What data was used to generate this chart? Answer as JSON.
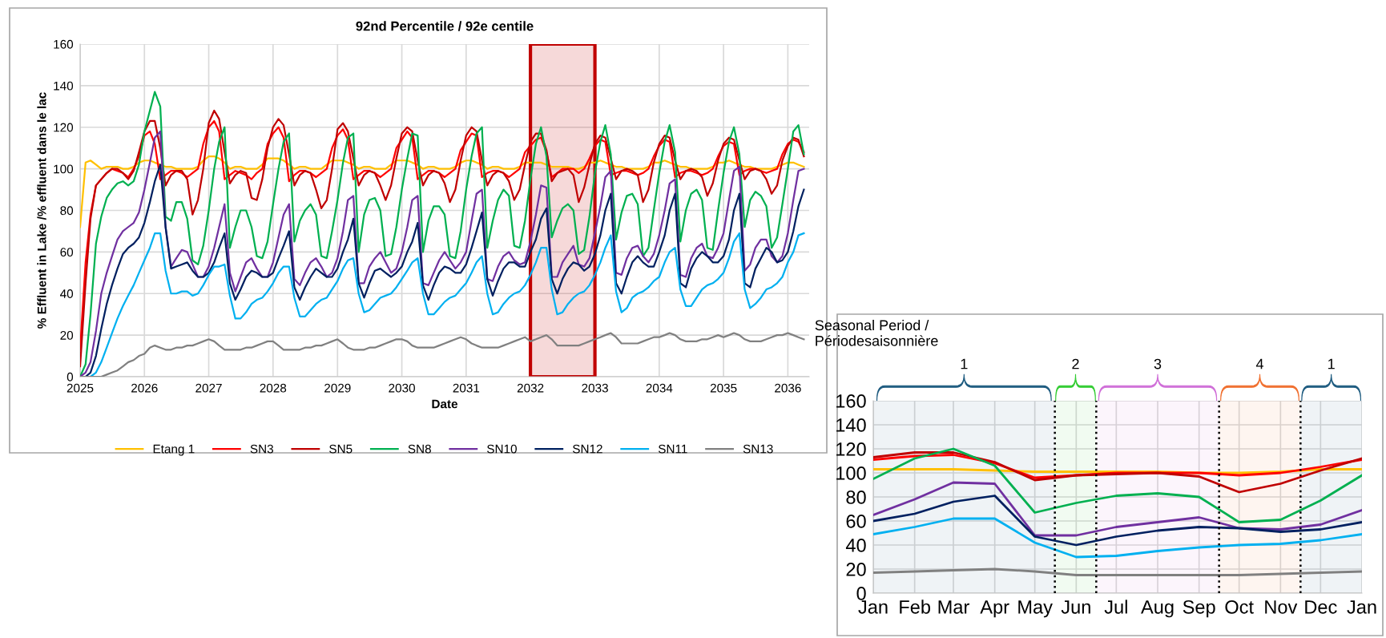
{
  "chart_data": [
    {
      "type": "line",
      "title": "92nd Percentile / 92e centile",
      "xlabel": "Date",
      "ylabel": "% Effluent in Lake /% effluent dans le lac",
      "x": [
        "2025-01",
        "2025-02",
        "2025-03",
        "2025-04",
        "2025-05",
        "2025-06",
        "2025-07",
        "2025-08",
        "2025-09",
        "2025-10",
        "2025-11",
        "2025-12",
        "2026-01",
        "2026-02",
        "2026-03",
        "2026-04",
        "2026-05",
        "2026-06",
        "2026-07",
        "2026-08",
        "2026-09",
        "2026-10",
        "2026-11",
        "2026-12",
        "2027-01",
        "2027-02",
        "2027-03",
        "2027-04",
        "2027-05",
        "2027-06",
        "2027-07",
        "2027-08",
        "2027-09",
        "2027-10",
        "2027-11",
        "2027-12",
        "2028-01",
        "2028-02",
        "2028-03",
        "2028-04",
        "2028-05",
        "2028-06",
        "2028-07",
        "2028-08",
        "2028-09",
        "2028-10",
        "2028-11",
        "2028-12",
        "2029-01",
        "2029-02",
        "2029-03",
        "2029-04",
        "2029-05",
        "2029-06",
        "2029-07",
        "2029-08",
        "2029-09",
        "2029-10",
        "2029-11",
        "2029-12",
        "2030-01",
        "2030-02",
        "2030-03",
        "2030-04",
        "2030-05",
        "2030-06",
        "2030-07",
        "2030-08",
        "2030-09",
        "2030-10",
        "2030-11",
        "2030-12",
        "2031-01",
        "2031-02",
        "2031-03",
        "2031-04",
        "2031-05",
        "2031-06",
        "2031-07",
        "2031-08",
        "2031-09",
        "2031-10",
        "2031-11",
        "2031-12",
        "2032-01",
        "2032-02",
        "2032-03",
        "2032-04",
        "2032-05",
        "2032-06",
        "2032-07",
        "2032-08",
        "2032-09",
        "2032-10",
        "2032-11",
        "2032-12",
        "2033-01",
        "2033-02",
        "2033-03",
        "2033-04",
        "2033-05",
        "2033-06",
        "2033-07",
        "2033-08",
        "2033-09",
        "2033-10",
        "2033-11",
        "2033-12",
        "2034-01",
        "2034-02",
        "2034-03",
        "2034-04",
        "2034-05",
        "2034-06",
        "2034-07",
        "2034-08",
        "2034-09",
        "2034-10",
        "2034-11",
        "2034-12",
        "2035-01",
        "2035-02",
        "2035-03",
        "2035-04",
        "2035-05",
        "2035-06",
        "2035-07",
        "2035-08",
        "2035-09",
        "2035-10",
        "2035-11",
        "2035-12",
        "2036-01",
        "2036-02",
        "2036-03",
        "2036-04"
      ],
      "series": [
        {
          "name": "Etang 1",
          "color": "#ffc000",
          "values": [
            72,
            103,
            104,
            102,
            100,
            101,
            101,
            101,
            100,
            100,
            101,
            103,
            104,
            104,
            103,
            102,
            101,
            101,
            100,
            100,
            100,
            100,
            101,
            104,
            106,
            106,
            105,
            103,
            100,
            101,
            101,
            100,
            100,
            100,
            102,
            105,
            105,
            105,
            104,
            102,
            100,
            101,
            101,
            100,
            100,
            100,
            102,
            104,
            104,
            104,
            103,
            102,
            100,
            101,
            101,
            100,
            100,
            100,
            102,
            104,
            104,
            104,
            103,
            102,
            100,
            101,
            101,
            100,
            100,
            100,
            101,
            103,
            104,
            104,
            103,
            102,
            100,
            101,
            101,
            100,
            100,
            100,
            101,
            103,
            103,
            103,
            103,
            102,
            101,
            101,
            101,
            101,
            100,
            100,
            101,
            103,
            103,
            104,
            103,
            102,
            101,
            101,
            100,
            100,
            100,
            100,
            101,
            103,
            103,
            104,
            103,
            102,
            101,
            101,
            100,
            100,
            100,
            100,
            101,
            103,
            103,
            104,
            103,
            102,
            101,
            101,
            100,
            100,
            100,
            100,
            101,
            102,
            103,
            103,
            102,
            101
          ]
        },
        {
          "name": "SN3",
          "color": "#ff0000",
          "values": [
            13,
            55,
            78,
            92,
            95,
            98,
            100,
            99,
            98,
            96,
            100,
            106,
            116,
            118,
            112,
            95,
            97,
            99,
            99,
            98,
            96,
            98,
            100,
            112,
            120,
            123,
            118,
            95,
            97,
            99,
            98,
            97,
            95,
            98,
            100,
            112,
            117,
            120,
            115,
            94,
            97,
            99,
            99,
            98,
            96,
            98,
            100,
            110,
            116,
            119,
            114,
            95,
            97,
            99,
            99,
            98,
            96,
            98,
            100,
            110,
            114,
            118,
            115,
            95,
            97,
            99,
            99,
            98,
            96,
            98,
            100,
            109,
            113,
            117,
            116,
            96,
            98,
            99,
            99,
            98,
            96,
            98,
            100,
            108,
            111,
            114,
            115,
            108,
            96,
            98,
            100,
            100,
            100,
            98,
            100,
            105,
            111,
            114,
            113,
            97,
            98,
            99,
            99,
            98,
            97,
            98,
            100,
            106,
            111,
            114,
            113,
            96,
            98,
            99,
            99,
            98,
            97,
            98,
            100,
            106,
            111,
            113,
            112,
            97,
            99,
            100,
            100,
            99,
            98,
            99,
            100,
            107,
            112,
            114,
            113,
            108
          ]
        },
        {
          "name": "SN5",
          "color": "#c00000",
          "values": [
            5,
            45,
            76,
            92,
            95,
            98,
            100,
            100,
            98,
            95,
            99,
            108,
            118,
            123,
            123,
            110,
            92,
            97,
            99,
            99,
            95,
            78,
            85,
            100,
            122,
            128,
            124,
            108,
            93,
            97,
            99,
            98,
            86,
            85,
            95,
            110,
            120,
            124,
            121,
            107,
            92,
            97,
            99,
            98,
            90,
            81,
            85,
            100,
            119,
            122,
            118,
            105,
            92,
            97,
            99,
            98,
            92,
            85,
            92,
            105,
            117,
            120,
            118,
            104,
            92,
            97,
            99,
            98,
            93,
            84,
            90,
            104,
            116,
            120,
            118,
            104,
            92,
            97,
            99,
            98,
            94,
            85,
            90,
            102,
            113,
            117,
            117,
            109,
            94,
            98,
            99,
            100,
            97,
            84,
            91,
            102,
            112,
            116,
            115,
            105,
            95,
            99,
            100,
            99,
            97,
            84,
            90,
            103,
            112,
            116,
            115,
            104,
            95,
            99,
            100,
            99,
            96,
            87,
            93,
            104,
            112,
            115,
            114,
            104,
            95,
            99,
            100,
            99,
            95,
            88,
            92,
            104,
            111,
            115,
            114,
            106
          ]
        },
        {
          "name": "SN8",
          "color": "#00b050",
          "values": [
            0,
            6,
            30,
            64,
            77,
            86,
            90,
            93,
            94,
            92,
            94,
            102,
            118,
            128,
            137,
            130,
            77,
            75,
            84,
            84,
            76,
            56,
            54,
            63,
            80,
            100,
            113,
            120,
            62,
            72,
            80,
            80,
            72,
            58,
            57,
            65,
            83,
            100,
            113,
            117,
            65,
            75,
            80,
            83,
            78,
            58,
            57,
            70,
            85,
            103,
            115,
            117,
            60,
            78,
            85,
            86,
            80,
            58,
            59,
            72,
            90,
            105,
            117,
            116,
            60,
            75,
            82,
            82,
            78,
            58,
            57,
            70,
            90,
            106,
            117,
            120,
            62,
            75,
            85,
            90,
            87,
            63,
            62,
            75,
            95,
            112,
            120,
            106,
            67,
            75,
            81,
            83,
            80,
            59,
            61,
            77,
            98,
            113,
            121,
            107,
            66,
            79,
            87,
            88,
            83,
            58,
            62,
            80,
            98,
            113,
            121,
            108,
            65,
            80,
            88,
            90,
            85,
            62,
            61,
            80,
            98,
            113,
            120,
            107,
            72,
            85,
            89,
            87,
            82,
            62,
            67,
            83,
            100,
            118,
            121,
            107
          ]
        },
        {
          "name": "SN10",
          "color": "#7030a0",
          "values": [
            0,
            2,
            7,
            22,
            40,
            50,
            58,
            66,
            70,
            72,
            74,
            79,
            90,
            103,
            115,
            118,
            72,
            53,
            57,
            61,
            60,
            54,
            48,
            48,
            53,
            62,
            72,
            83,
            50,
            41,
            48,
            55,
            57,
            52,
            48,
            48,
            55,
            67,
            78,
            83,
            47,
            44,
            50,
            55,
            57,
            53,
            48,
            50,
            57,
            70,
            85,
            87,
            45,
            45,
            53,
            57,
            60,
            55,
            50,
            52,
            60,
            72,
            85,
            87,
            45,
            44,
            50,
            56,
            60,
            56,
            52,
            55,
            60,
            75,
            88,
            90,
            47,
            46,
            53,
            58,
            60,
            56,
            54,
            55,
            65,
            78,
            92,
            91,
            48,
            48,
            55,
            59,
            63,
            54,
            53,
            57,
            69,
            82,
            96,
            99,
            50,
            49,
            57,
            62,
            63,
            58,
            55,
            59,
            68,
            80,
            93,
            95,
            49,
            48,
            57,
            62,
            64,
            58,
            57,
            62,
            69,
            85,
            99,
            101,
            51,
            54,
            62,
            66,
            66,
            58,
            55,
            58,
            69,
            85,
            99,
            100
          ]
        },
        {
          "name": "SN12",
          "color": "#002060",
          "values": [
            0,
            0,
            2,
            10,
            23,
            35,
            44,
            52,
            59,
            62,
            64,
            67,
            74,
            84,
            94,
            102,
            72,
            52,
            53,
            54,
            55,
            51,
            48,
            48,
            50,
            55,
            62,
            69,
            45,
            37,
            42,
            48,
            51,
            50,
            48,
            48,
            50,
            57,
            63,
            70,
            43,
            37,
            43,
            48,
            52,
            50,
            48,
            48,
            52,
            60,
            66,
            76,
            45,
            38,
            45,
            51,
            52,
            50,
            48,
            50,
            53,
            60,
            65,
            74,
            44,
            37,
            44,
            50,
            53,
            52,
            50,
            50,
            54,
            62,
            70,
            79,
            47,
            39,
            46,
            52,
            55,
            55,
            53,
            53,
            60,
            66,
            76,
            81,
            47,
            40,
            47,
            52,
            55,
            54,
            51,
            53,
            59,
            68,
            80,
            88,
            45,
            40,
            48,
            55,
            58,
            55,
            53,
            53,
            60,
            68,
            80,
            88,
            45,
            43,
            52,
            57,
            60,
            58,
            55,
            55,
            58,
            66,
            80,
            88,
            45,
            43,
            52,
            57,
            62,
            60,
            55,
            56,
            60,
            70,
            82,
            90
          ]
        },
        {
          "name": "SN11",
          "color": "#00b0f0",
          "values": [
            0,
            0,
            0,
            2,
            7,
            14,
            21,
            28,
            34,
            39,
            44,
            50,
            56,
            62,
            69,
            69,
            51,
            40,
            40,
            41,
            41,
            39,
            40,
            44,
            49,
            53,
            53,
            54,
            39,
            28,
            28,
            31,
            35,
            37,
            38,
            41,
            45,
            50,
            53,
            53,
            38,
            29,
            29,
            32,
            35,
            37,
            38,
            42,
            46,
            52,
            56,
            57,
            40,
            31,
            32,
            35,
            38,
            39,
            40,
            43,
            47,
            51,
            55,
            57,
            40,
            30,
            30,
            33,
            36,
            38,
            39,
            42,
            45,
            50,
            55,
            58,
            40,
            30,
            31,
            35,
            38,
            40,
            41,
            44,
            49,
            55,
            62,
            62,
            42,
            30,
            31,
            35,
            38,
            40,
            41,
            44,
            49,
            55,
            62,
            68,
            41,
            31,
            33,
            38,
            40,
            41,
            43,
            46,
            48,
            55,
            60,
            62,
            42,
            34,
            34,
            38,
            42,
            44,
            45,
            47,
            50,
            57,
            65,
            69,
            42,
            33,
            35,
            38,
            42,
            43,
            45,
            48,
            55,
            60,
            68,
            69
          ]
        },
        {
          "name": "SN13",
          "color": "#808080",
          "values": [
            0,
            0,
            0,
            0,
            0,
            1,
            2,
            3,
            5,
            7,
            8,
            10,
            11,
            14,
            15,
            14,
            13,
            13,
            14,
            14,
            15,
            15,
            16,
            17,
            18,
            17,
            15,
            13,
            13,
            13,
            13,
            14,
            14,
            15,
            16,
            17,
            17,
            15,
            13,
            13,
            13,
            13,
            14,
            14,
            15,
            15,
            16,
            17,
            18,
            16,
            14,
            13,
            13,
            13,
            14,
            14,
            15,
            16,
            17,
            18,
            18,
            17,
            15,
            14,
            14,
            14,
            14,
            15,
            16,
            17,
            18,
            19,
            18,
            16,
            15,
            14,
            14,
            14,
            14,
            15,
            16,
            17,
            18,
            19,
            17,
            18,
            19,
            20,
            18,
            15,
            15,
            15,
            15,
            15,
            16,
            17,
            18,
            19,
            20,
            21,
            19,
            16,
            16,
            16,
            16,
            17,
            18,
            19,
            19,
            20,
            21,
            20,
            18,
            17,
            17,
            17,
            18,
            18,
            19,
            20,
            19,
            20,
            21,
            20,
            18,
            17,
            17,
            17,
            18,
            19,
            20,
            20,
            21,
            20,
            19,
            18
          ]
        }
      ],
      "xlim": [
        "2025-01-01",
        "2036-05-01"
      ],
      "xticks": [
        "2025",
        "2026",
        "2027",
        "2028",
        "2029",
        "2030",
        "2031",
        "2032",
        "2033",
        "2034",
        "2035",
        "2036"
      ],
      "ylim": [
        0,
        160
      ],
      "yticks": [
        0,
        20,
        40,
        60,
        80,
        100,
        120,
        140,
        160
      ],
      "grid": true,
      "legend": "bottom",
      "line_style": "solid",
      "bands": [
        {
          "axis": "x",
          "from": "2032-01",
          "to": "2033-01",
          "color": "#c00000"
        }
      ]
    },
    {
      "type": "line",
      "title": "Seasonal Period /\nPériodesaisonnière",
      "x": [
        "2032-01",
        "2032-02",
        "2032-03",
        "2032-04",
        "2032-05",
        "2032-06",
        "2032-07",
        "2032-08",
        "2032-09",
        "2032-10",
        "2032-11",
        "2032-12",
        "2033-01"
      ],
      "series": [
        {
          "color": "#ffc000",
          "values": [
            103,
            103,
            103,
            102,
            101,
            101,
            101,
            101,
            100,
            100,
            101,
            103,
            103
          ]
        },
        {
          "color": "#ff0000",
          "values": [
            111,
            114,
            115,
            108,
            96,
            98,
            100,
            100,
            100,
            98,
            100,
            105,
            111
          ]
        },
        {
          "color": "#c00000",
          "values": [
            113,
            117,
            117,
            109,
            94,
            98,
            99,
            100,
            97,
            84,
            91,
            102,
            112
          ]
        },
        {
          "color": "#00b050",
          "values": [
            95,
            112,
            120,
            106,
            67,
            75,
            81,
            83,
            80,
            59,
            61,
            77,
            98
          ]
        },
        {
          "color": "#7030a0",
          "values": [
            65,
            78,
            92,
            91,
            48,
            48,
            55,
            59,
            63,
            54,
            53,
            57,
            69
          ]
        },
        {
          "color": "#002060",
          "values": [
            60,
            66,
            76,
            81,
            47,
            40,
            47,
            52,
            55,
            54,
            51,
            53,
            59
          ]
        },
        {
          "color": "#00b0f0",
          "values": [
            49,
            55,
            62,
            62,
            42,
            30,
            31,
            35,
            38,
            40,
            41,
            44,
            49
          ]
        },
        {
          "color": "#808080",
          "values": [
            17,
            18,
            19,
            20,
            18,
            15,
            15,
            15,
            15,
            15,
            16,
            17,
            18
          ]
        }
      ],
      "xlim": [
        "2032-01-01",
        "2033-01-01"
      ],
      "xticks": [
        {
          "value": "2032-01",
          "label": "Jan"
        },
        {
          "value": "2032-02",
          "label": "Feb"
        },
        {
          "value": "2032-03",
          "label": "Mar"
        },
        {
          "value": "2032-04",
          "label": "Apr"
        },
        {
          "value": "2032-05",
          "label": "May"
        },
        {
          "value": "2032-06",
          "label": "Jun"
        },
        {
          "value": "2032-07",
          "label": "Jul"
        },
        {
          "value": "2032-08",
          "label": "Aug"
        },
        {
          "value": "2032-09",
          "label": "Sep"
        },
        {
          "value": "2032-10",
          "label": "Oct"
        },
        {
          "value": "2032-11",
          "label": "Nov"
        },
        {
          "value": "2032-12",
          "label": "Dec"
        },
        {
          "value": "2033-01",
          "label": "Jan"
        }
      ],
      "ylim": [
        0,
        160
      ],
      "yticks": [
        0,
        20,
        40,
        60,
        80,
        100,
        120,
        140,
        160
      ],
      "grid": true,
      "line_style": "solid",
      "ref_lines": [
        {
          "axis": "x",
          "value": "2032-05-16",
          "color": "#000000",
          "line_style": "dotted"
        },
        {
          "axis": "x",
          "value": "2032-06-16",
          "color": "#000000",
          "line_style": "dotted"
        },
        {
          "axis": "x",
          "value": "2032-09-16",
          "color": "#000000",
          "line_style": "dotted"
        },
        {
          "axis": "x",
          "value": "2032-11-16",
          "color": "#000000",
          "line_style": "dotted"
        }
      ],
      "bands": [
        {
          "axis": "x",
          "from": "2032-01-01",
          "to": "2032-05-16",
          "label": "1",
          "color": "#1f5c80"
        },
        {
          "axis": "x",
          "from": "2032-05-16",
          "to": "2032-06-16",
          "label": "2",
          "color": "#33cc33"
        },
        {
          "axis": "x",
          "from": "2032-06-16",
          "to": "2032-09-16",
          "label": "3",
          "color": "#d070d8"
        },
        {
          "axis": "x",
          "from": "2032-09-16",
          "to": "2032-11-16",
          "label": "4",
          "color": "#f07030"
        },
        {
          "axis": "x",
          "from": "2032-11-16",
          "to": "2033-01-01",
          "label": "1",
          "color": "#1f5c80"
        }
      ]
    }
  ]
}
